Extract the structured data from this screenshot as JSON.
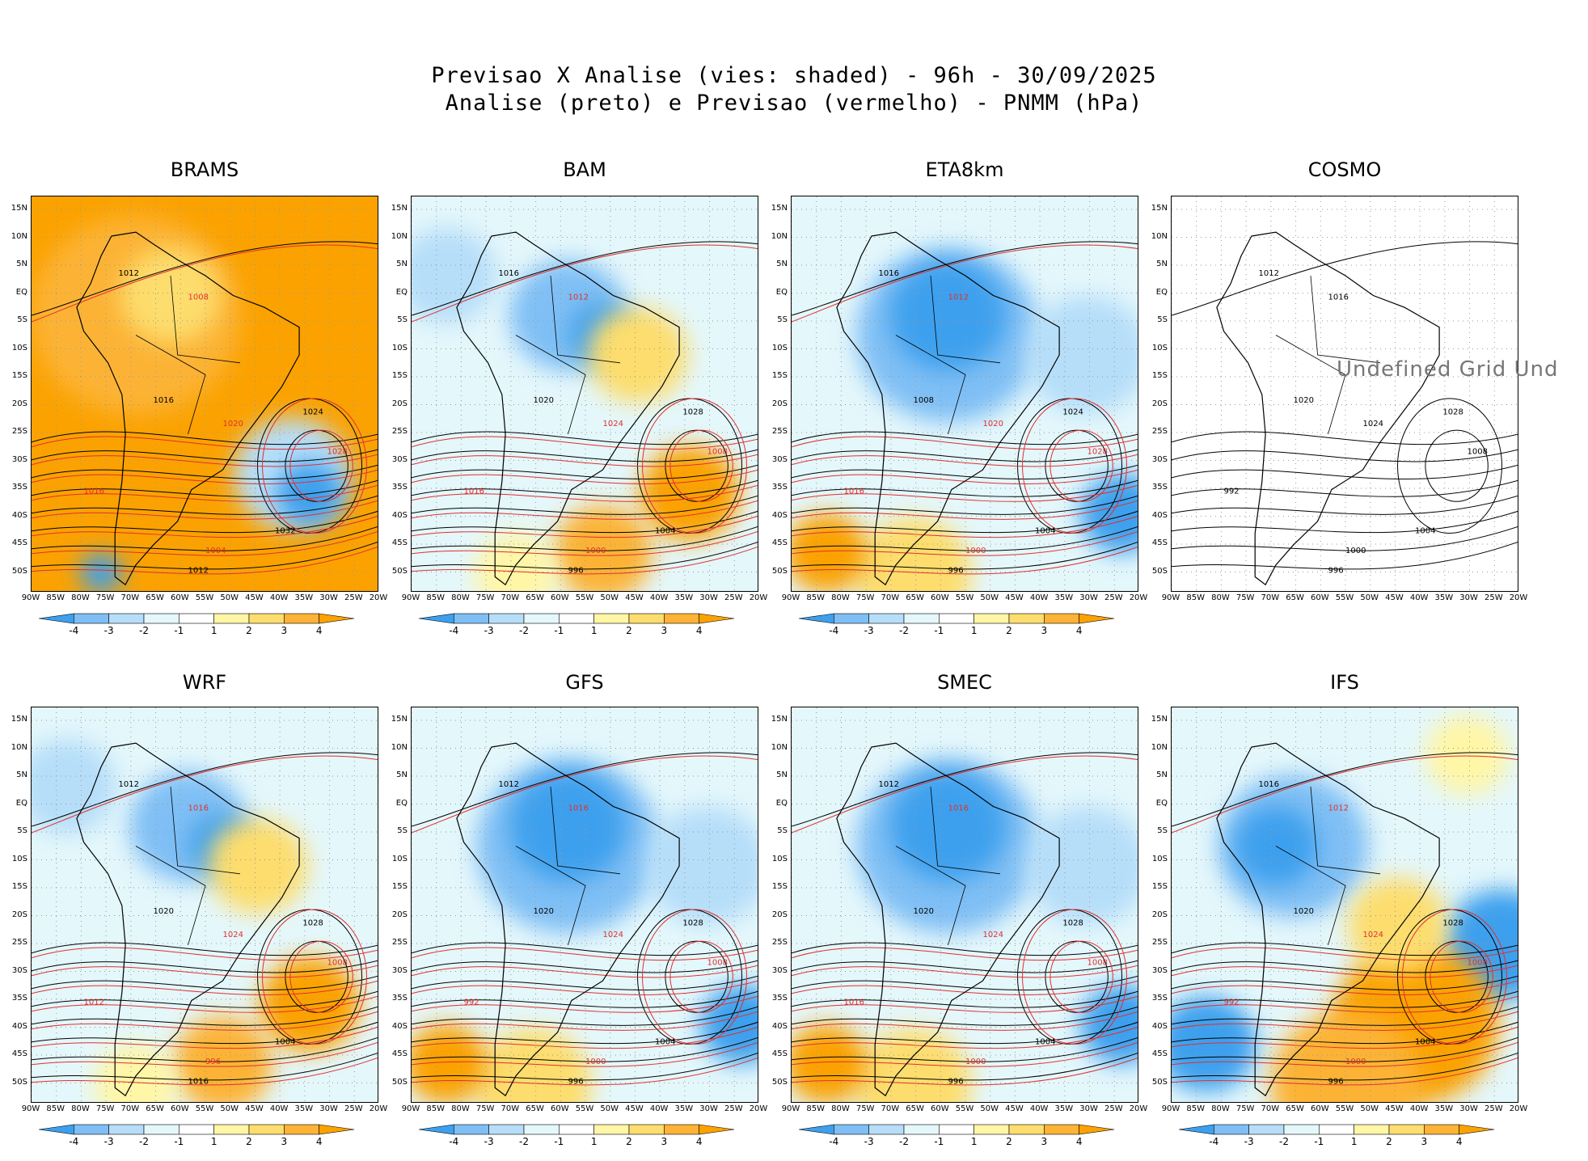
{
  "header": {
    "line1": "Previsao X Analise (vies: shaded) - 96h - 30/09/2025",
    "line2": "Analise (preto) e Previsao (vermelho) - PNMM (hPa)"
  },
  "lat_labels": [
    "15N",
    "10N",
    "5N",
    "EQ",
    "5S",
    "10S",
    "15S",
    "20S",
    "25S",
    "30S",
    "35S",
    "40S",
    "45S",
    "50S"
  ],
  "lon_labels": [
    "90W",
    "85W",
    "80W",
    "75W",
    "70W",
    "65W",
    "60W",
    "55W",
    "50W",
    "45W",
    "40W",
    "35W",
    "30W",
    "25W",
    "20W"
  ],
  "colorbar": {
    "labels": [
      "-4",
      "-3",
      "-2",
      "-1",
      "1",
      "2",
      "3",
      "4"
    ],
    "colors": [
      "#3da0ee",
      "#7fbff5",
      "#b6def9",
      "#e4f7fb",
      "#ffffff",
      "#fff6a6",
      "#fddd6d",
      "#fcb336",
      "#fba200"
    ]
  },
  "panels": [
    {
      "name": "BRAMS",
      "bias": "warm",
      "labels": [
        "1012",
        "1008",
        "1016",
        "1020",
        "1024",
        "1028",
        "1032",
        "1004",
        "1012",
        "1016"
      ]
    },
    {
      "name": "BAM",
      "bias": "mixed",
      "labels": [
        "1016",
        "1012",
        "1020",
        "1024",
        "1028",
        "1008",
        "1004",
        "1000",
        "996",
        "1016"
      ]
    },
    {
      "name": "ETA8km",
      "bias": "cold",
      "labels": [
        "1016",
        "1012",
        "1008",
        "1020",
        "1024",
        "1028",
        "1004",
        "1000",
        "996",
        "1016"
      ]
    },
    {
      "name": "COSMO",
      "bias": "none",
      "labels": [
        "1012",
        "1016",
        "1020",
        "1024",
        "1028",
        "1008",
        "1004",
        "1000",
        "996",
        "992"
      ],
      "note": "Undefined Grid Und"
    },
    {
      "name": "WRF",
      "bias": "mixed",
      "labels": [
        "1012",
        "1016",
        "1020",
        "1024",
        "1028",
        "1008",
        "1004",
        "996",
        "1016",
        "1012"
      ]
    },
    {
      "name": "GFS",
      "bias": "cold",
      "labels": [
        "1012",
        "1016",
        "1020",
        "1024",
        "1028",
        "1008",
        "1004",
        "1000",
        "996",
        "992"
      ]
    },
    {
      "name": "SMEC",
      "bias": "cold",
      "labels": [
        "1012",
        "1016",
        "1020",
        "1024",
        "1028",
        "1008",
        "1004",
        "1000",
        "996",
        "1016"
      ]
    },
    {
      "name": "IFS",
      "bias": "strong",
      "labels": [
        "1016",
        "1012",
        "1020",
        "1024",
        "1028",
        "1008",
        "1004",
        "1000",
        "996",
        "992"
      ]
    }
  ]
}
